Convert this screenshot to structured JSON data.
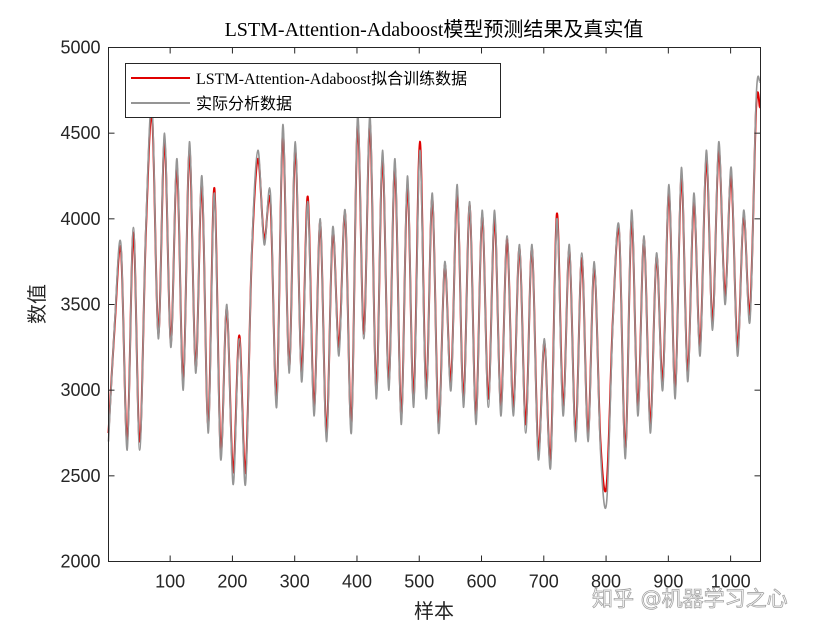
{
  "watermark": "知乎 @机器学习之心",
  "chart_data": {
    "type": "line",
    "title": "LSTM-Attention-Adaboost模型预测结果及真实值",
    "xlabel": "样本",
    "ylabel": "数值",
    "xlim": [
      1,
      1048
    ],
    "ylim": [
      2000,
      5000
    ],
    "xticks": [
      100,
      200,
      300,
      400,
      500,
      600,
      700,
      800,
      900,
      1000
    ],
    "yticks": [
      2000,
      2500,
      3000,
      3500,
      4000,
      4500,
      5000
    ],
    "grid": false,
    "legend_position": "top-left",
    "x": [
      1,
      11,
      21,
      31,
      41,
      51,
      61,
      71,
      81,
      91,
      101,
      111,
      121,
      131,
      141,
      151,
      161,
      171,
      181,
      191,
      201,
      211,
      221,
      231,
      241,
      251,
      261,
      271,
      281,
      291,
      301,
      311,
      321,
      331,
      341,
      351,
      361,
      371,
      381,
      391,
      401,
      411,
      421,
      431,
      441,
      451,
      461,
      471,
      481,
      491,
      501,
      511,
      521,
      531,
      541,
      551,
      561,
      571,
      581,
      591,
      601,
      611,
      621,
      631,
      641,
      651,
      661,
      671,
      681,
      691,
      701,
      711,
      721,
      731,
      741,
      751,
      761,
      771,
      781,
      791,
      801,
      811,
      821,
      831,
      841,
      851,
      861,
      871,
      881,
      891,
      901,
      911,
      921,
      931,
      941,
      951,
      961,
      971,
      981,
      991,
      1001,
      1011,
      1021,
      1031,
      1041,
      1047
    ],
    "series": [
      {
        "name": "LSTM-Attention-Adaboost拟合训练数据",
        "color": "#e00000",
        "values": [
          2750,
          3380,
          3820,
          2700,
          3920,
          2700,
          3920,
          4600,
          3330,
          4450,
          3280,
          4300,
          3050,
          4400,
          3130,
          4200,
          2800,
          4180,
          2650,
          3480,
          2520,
          3320,
          2520,
          3780,
          4350,
          3880,
          4100,
          2950,
          4500,
          3130,
          4400,
          3100,
          4130,
          2900,
          3980,
          2750,
          3920,
          3250,
          4030,
          2800,
          4550,
          3330,
          4550,
          3000,
          4350,
          3050,
          4300,
          2850,
          4200,
          2950,
          4450,
          3000,
          4120,
          2800,
          3730,
          3050,
          4150,
          2950,
          4080,
          2850,
          4020,
          2950,
          4000,
          2900,
          3880,
          2900,
          3830,
          2800,
          3830,
          2650,
          3280,
          2600,
          4030,
          2900,
          3820,
          2750,
          3770,
          2750,
          3720,
          2700,
          2450,
          3420,
          3920,
          2650,
          4000,
          2900,
          3880,
          2800,
          3780,
          3050,
          4150,
          3000,
          4250,
          3100,
          4100,
          3250,
          4350,
          3400,
          4400,
          3550,
          4250,
          3250,
          4020,
          3450,
          4650,
          4650
        ]
      },
      {
        "name": "实际分析数据",
        "color": "#959595",
        "values": [
          2700,
          3400,
          3850,
          2650,
          3950,
          2650,
          3950,
          4650,
          3300,
          4500,
          3250,
          4350,
          3000,
          4450,
          3100,
          4250,
          2750,
          4150,
          2600,
          3500,
          2450,
          3300,
          2450,
          3800,
          4400,
          3850,
          4150,
          2900,
          4550,
          3100,
          4450,
          3050,
          4100,
          2850,
          4000,
          2700,
          3950,
          3200,
          4050,
          2750,
          4600,
          3300,
          4600,
          2950,
          4400,
          3000,
          4350,
          2800,
          4250,
          2900,
          4400,
          2950,
          4150,
          2750,
          3750,
          3000,
          4200,
          2900,
          4100,
          2800,
          4050,
          2900,
          4050,
          2850,
          3900,
          2850,
          3850,
          2750,
          3850,
          2600,
          3300,
          2550,
          4000,
          2850,
          3850,
          2700,
          3800,
          2700,
          3750,
          2650,
          2350,
          3400,
          3950,
          2600,
          4050,
          2850,
          3900,
          2750,
          3800,
          3000,
          4200,
          2950,
          4300,
          3050,
          4150,
          3200,
          4400,
          3350,
          4450,
          3500,
          4300,
          3200,
          4050,
          3400,
          4700,
          4800
        ]
      }
    ]
  }
}
